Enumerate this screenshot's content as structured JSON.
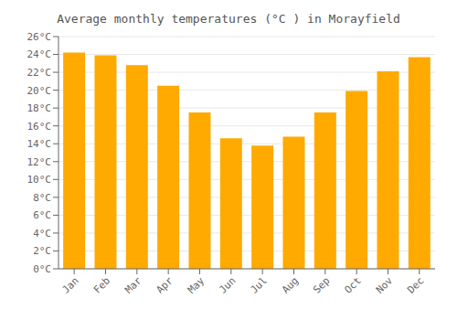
{
  "chart_data": {
    "type": "bar",
    "title": "Average monthly temperatures (°C ) in Morayfield",
    "categories": [
      "Jan",
      "Feb",
      "Mar",
      "Apr",
      "May",
      "Jun",
      "Jul",
      "Aug",
      "Sep",
      "Oct",
      "Nov",
      "Dec"
    ],
    "values": [
      24.2,
      23.9,
      22.8,
      20.5,
      17.5,
      14.6,
      13.8,
      14.8,
      17.5,
      19.9,
      22.1,
      23.7
    ],
    "color": "#FFAA00",
    "ylim": [
      0,
      26
    ],
    "yticks": [
      {
        "value": 0,
        "label": "0°C"
      },
      {
        "value": 2,
        "label": "2°C"
      },
      {
        "value": 4,
        "label": "4°C"
      },
      {
        "value": 6,
        "label": "6°C"
      },
      {
        "value": 8,
        "label": "8°C"
      },
      {
        "value": 10,
        "label": "10°C"
      },
      {
        "value": 12,
        "label": "12°C"
      },
      {
        "value": 14,
        "label": "14°C"
      },
      {
        "value": 16,
        "label": "16°C"
      },
      {
        "value": 18,
        "label": "18°C"
      },
      {
        "value": 20,
        "label": "20°C"
      },
      {
        "value": 22,
        "label": "22°C"
      },
      {
        "value": 24,
        "label": "24°C"
      },
      {
        "value": 26,
        "label": "26°C"
      }
    ],
    "grid": true
  }
}
